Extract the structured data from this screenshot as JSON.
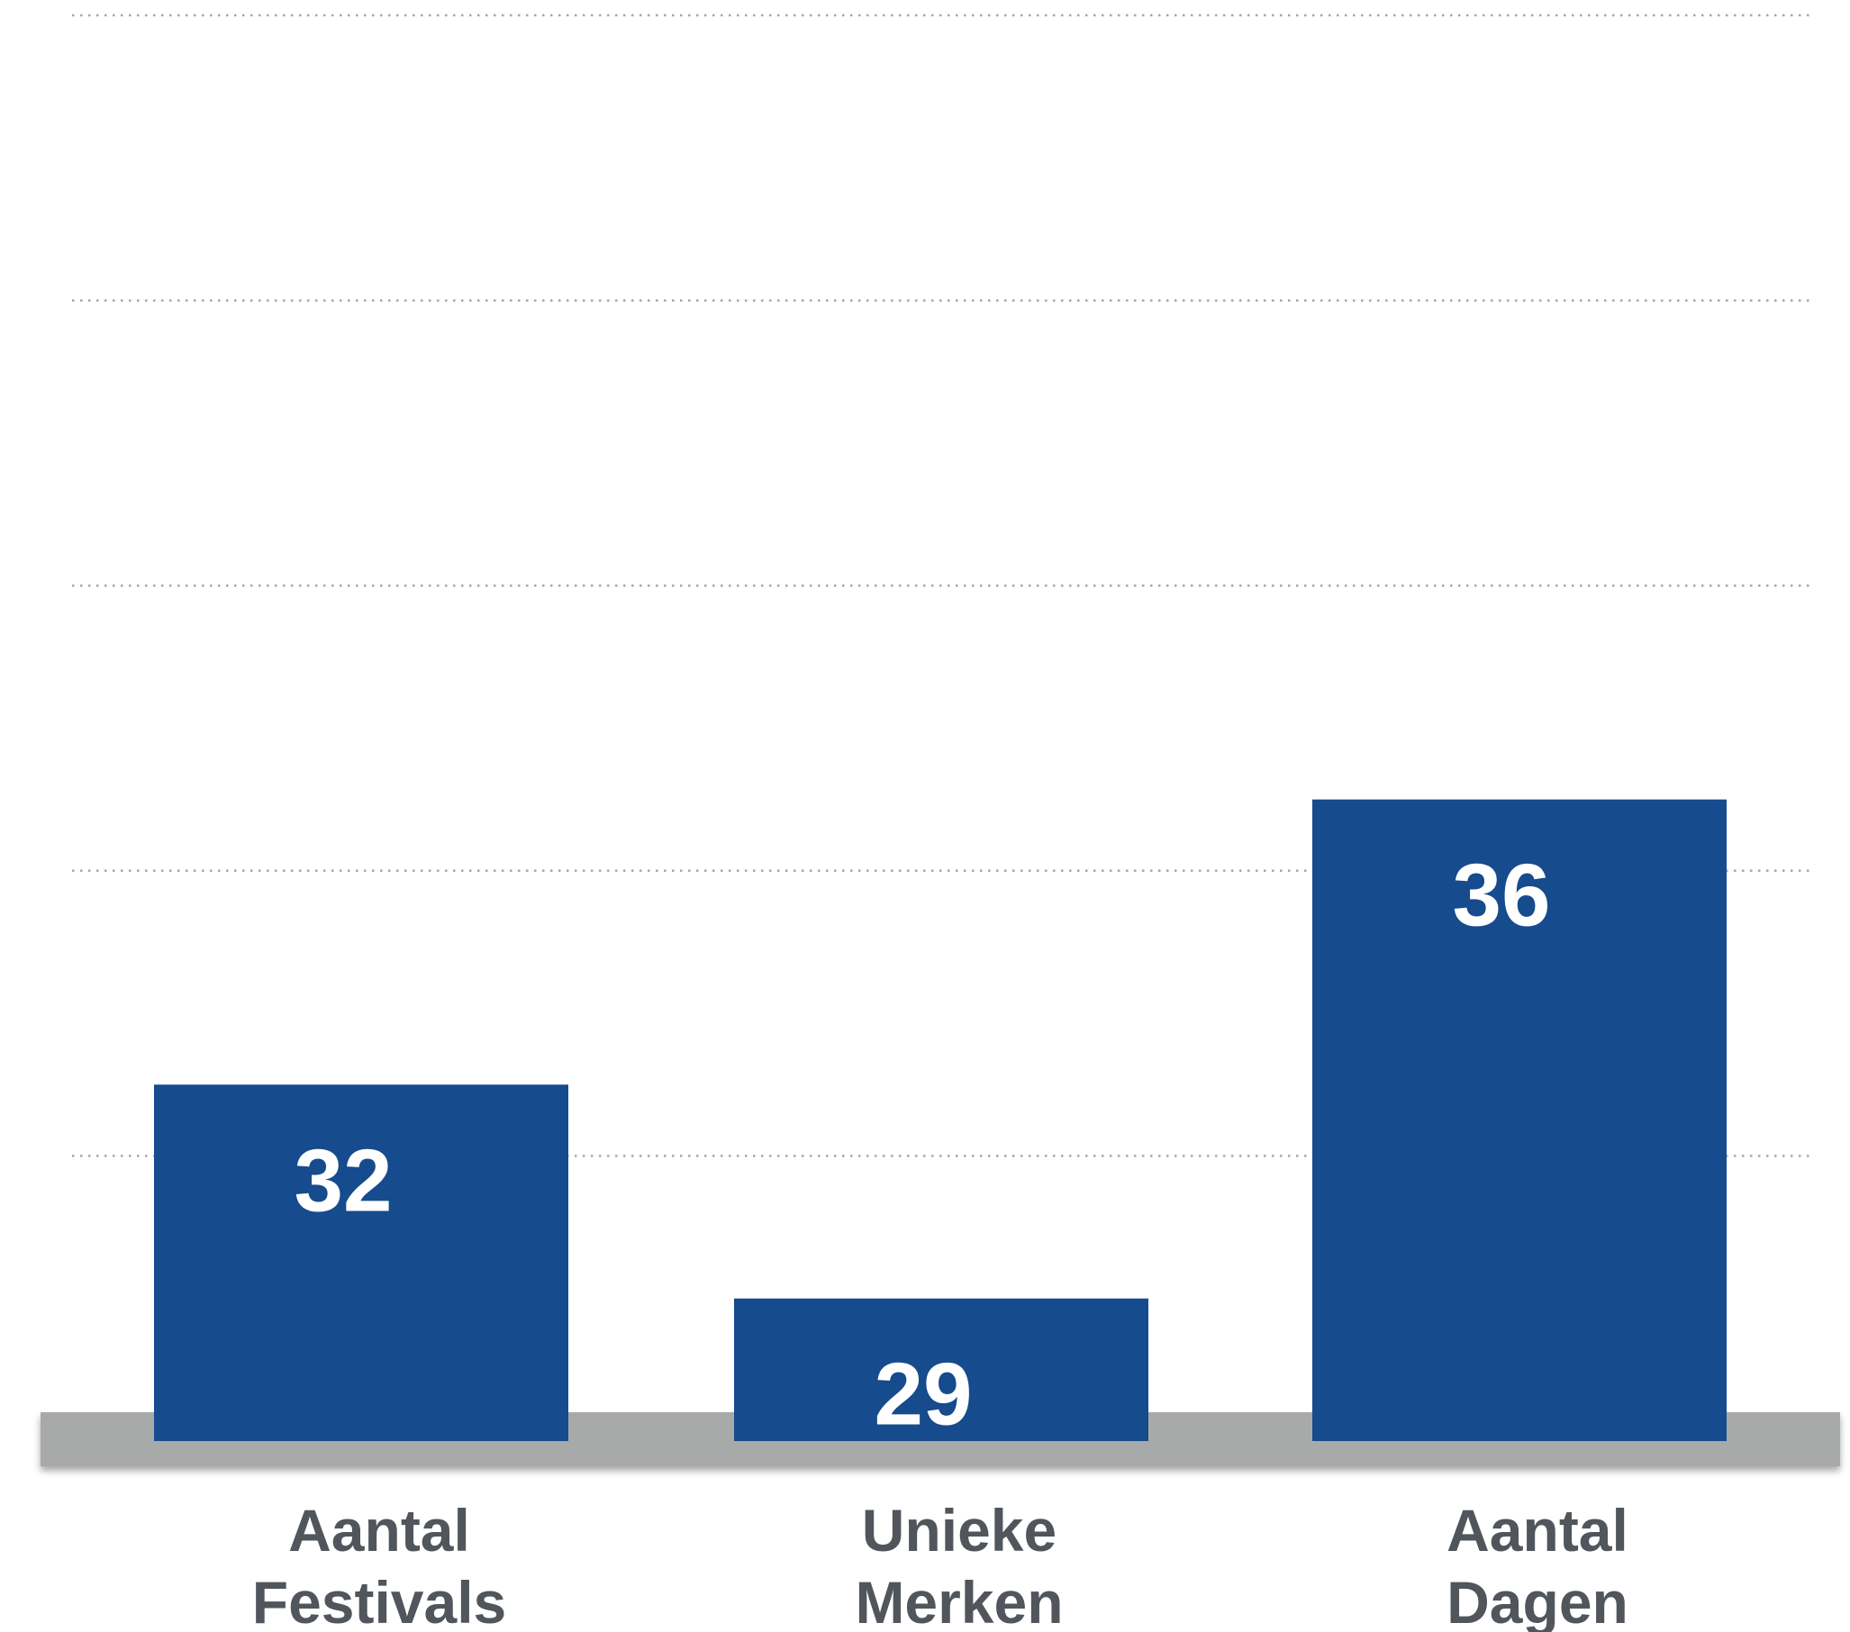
{
  "chart_data": {
    "type": "bar",
    "categories": [
      [
        "Aantal",
        "Festivals"
      ],
      [
        "Unieke",
        "Merken"
      ],
      [
        "Aantal",
        "Dagen"
      ]
    ],
    "values": [
      32,
      29,
      36
    ],
    "ylim": [
      27,
      47
    ],
    "gridlines": [
      31,
      35,
      39,
      43,
      47
    ],
    "grid": true,
    "grid_style": "dotted",
    "legend": "none",
    "colors": {
      "bar": "#164b8d",
      "data_label": "#ffffff",
      "category_label": "#51555c",
      "floor": "#a7aaa9",
      "grid": "#a6a6a6"
    }
  }
}
